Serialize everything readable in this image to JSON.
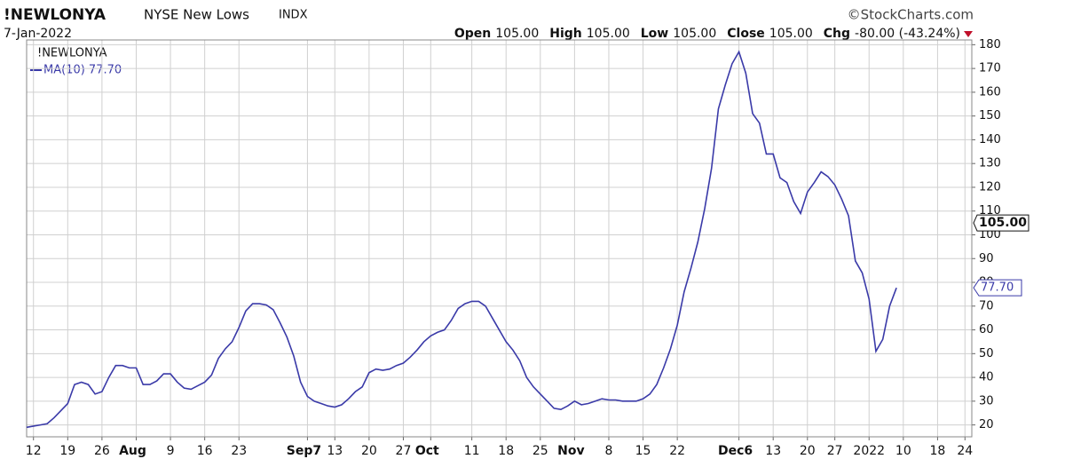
{
  "chart_data": {
    "type": "line",
    "symbol": "!NEWLONYA",
    "name": "NYSE New Lows",
    "exchange": "INDX",
    "watermark": "©StockCharts.com",
    "date": "7-Jan-2022",
    "quote": [
      {
        "label": "Open",
        "value": "105.00"
      },
      {
        "label": "High",
        "value": "105.00"
      },
      {
        "label": "Low",
        "value": "105.00"
      },
      {
        "label": "Close",
        "value": "105.00"
      },
      {
        "label": "Chg",
        "value": "-80.00 (-43.24%)"
      }
    ],
    "legend_title": "!NEWLONYA",
    "price_marker": {
      "value": 105,
      "label": "105.00"
    },
    "categories": [
      null,
      "12",
      null,
      null,
      null,
      null,
      "19",
      null,
      null,
      null,
      null,
      "26",
      null,
      null,
      null,
      null,
      "Aug",
      null,
      null,
      null,
      null,
      "9",
      null,
      null,
      null,
      null,
      "16",
      null,
      null,
      null,
      null,
      "23",
      null,
      null,
      null,
      null,
      null,
      null,
      null,
      null,
      null,
      "Sep7",
      null,
      null,
      null,
      "13",
      null,
      null,
      null,
      null,
      "20",
      null,
      null,
      null,
      null,
      "27",
      null,
      null,
      null,
      "Oct",
      null,
      null,
      null,
      null,
      null,
      "11",
      null,
      null,
      null,
      null,
      "18",
      null,
      null,
      null,
      null,
      "25",
      null,
      null,
      null,
      null,
      "Nov",
      null,
      null,
      null,
      null,
      "8",
      null,
      null,
      null,
      null,
      "15",
      null,
      null,
      null,
      null,
      "22",
      null,
      null,
      null,
      null,
      null,
      null,
      null,
      null,
      "Dec6",
      null,
      null,
      null,
      null,
      "13",
      null,
      null,
      null,
      null,
      "20",
      null,
      null,
      null,
      "27",
      null,
      null,
      null,
      null,
      "2022",
      null,
      null,
      null,
      null,
      "10",
      null,
      null,
      null,
      null,
      "18",
      null,
      null,
      null,
      "24",
      null
    ],
    "series": [
      {
        "name": "MA(10) 77.70",
        "color": "#3a3aa8",
        "values": [
          19,
          19.5,
          20,
          20.5,
          23,
          26,
          29,
          37,
          38,
          37,
          33,
          34,
          40,
          45,
          45,
          44,
          44,
          37,
          37,
          38.5,
          41.5,
          41.5,
          38,
          35.5,
          35,
          36.5,
          38,
          41,
          48,
          52,
          55,
          61,
          68,
          71,
          71,
          70.5,
          68.5,
          63,
          57,
          49,
          38,
          32,
          30,
          29,
          28,
          27.5,
          28.5,
          31,
          34,
          36,
          42,
          43.5,
          43,
          43.5,
          45,
          46,
          48.5,
          51.5,
          55,
          57.5,
          59,
          60,
          64,
          69,
          71,
          72,
          72,
          70,
          65,
          60,
          55,
          51.5,
          47,
          40,
          36,
          33,
          30,
          27,
          26.5,
          28,
          30,
          28.5,
          29,
          30,
          31,
          30.5,
          30.5,
          30,
          30,
          30,
          31,
          33,
          37,
          44,
          52,
          62,
          76,
          86,
          97,
          111,
          128,
          153,
          163,
          172,
          177,
          168,
          151,
          147,
          134,
          134,
          124,
          122,
          114,
          109,
          118,
          122,
          126.5,
          124.5,
          121,
          115,
          108,
          89,
          84,
          73,
          51,
          56,
          70,
          77.7,
          null,
          null,
          null,
          null,
          null,
          null,
          null,
          null,
          null,
          null,
          null
        ],
        "value_labels": [
          null,
          null,
          null,
          null,
          null,
          null,
          null,
          null,
          null,
          null,
          null,
          null,
          null,
          null,
          null,
          null,
          null,
          null,
          null,
          null,
          null,
          null,
          null,
          null,
          null,
          null,
          null,
          null,
          null,
          null,
          null,
          null,
          null,
          null,
          null,
          null,
          null,
          null,
          null,
          null,
          null,
          null,
          null,
          null,
          null,
          null,
          null,
          null,
          null,
          null,
          null,
          null,
          null,
          null,
          null,
          null,
          null,
          null,
          null,
          null,
          null,
          null,
          null,
          null,
          null,
          null,
          null,
          null,
          null,
          null,
          null,
          null,
          null,
          null,
          null,
          null,
          null,
          null,
          null,
          null,
          null,
          null,
          null,
          null,
          null,
          null,
          null,
          null,
          null,
          null,
          null,
          null,
          null,
          null,
          null,
          null,
          null,
          null,
          null,
          null,
          null,
          null,
          null,
          null,
          null,
          null,
          null,
          null,
          null,
          null,
          null,
          null,
          null,
          null,
          null,
          null,
          null,
          null,
          null,
          null,
          null,
          null,
          null,
          null,
          null,
          null,
          null,
          "77.70",
          null,
          null,
          null,
          null,
          null,
          null,
          null,
          null,
          null,
          null,
          null
        ]
      }
    ],
    "ylim": [
      15,
      182
    ],
    "yticks": [
      20,
      30,
      40,
      50,
      60,
      70,
      80,
      90,
      100,
      110,
      120,
      130,
      140,
      150,
      160,
      170,
      180
    ],
    "grid": true
  }
}
